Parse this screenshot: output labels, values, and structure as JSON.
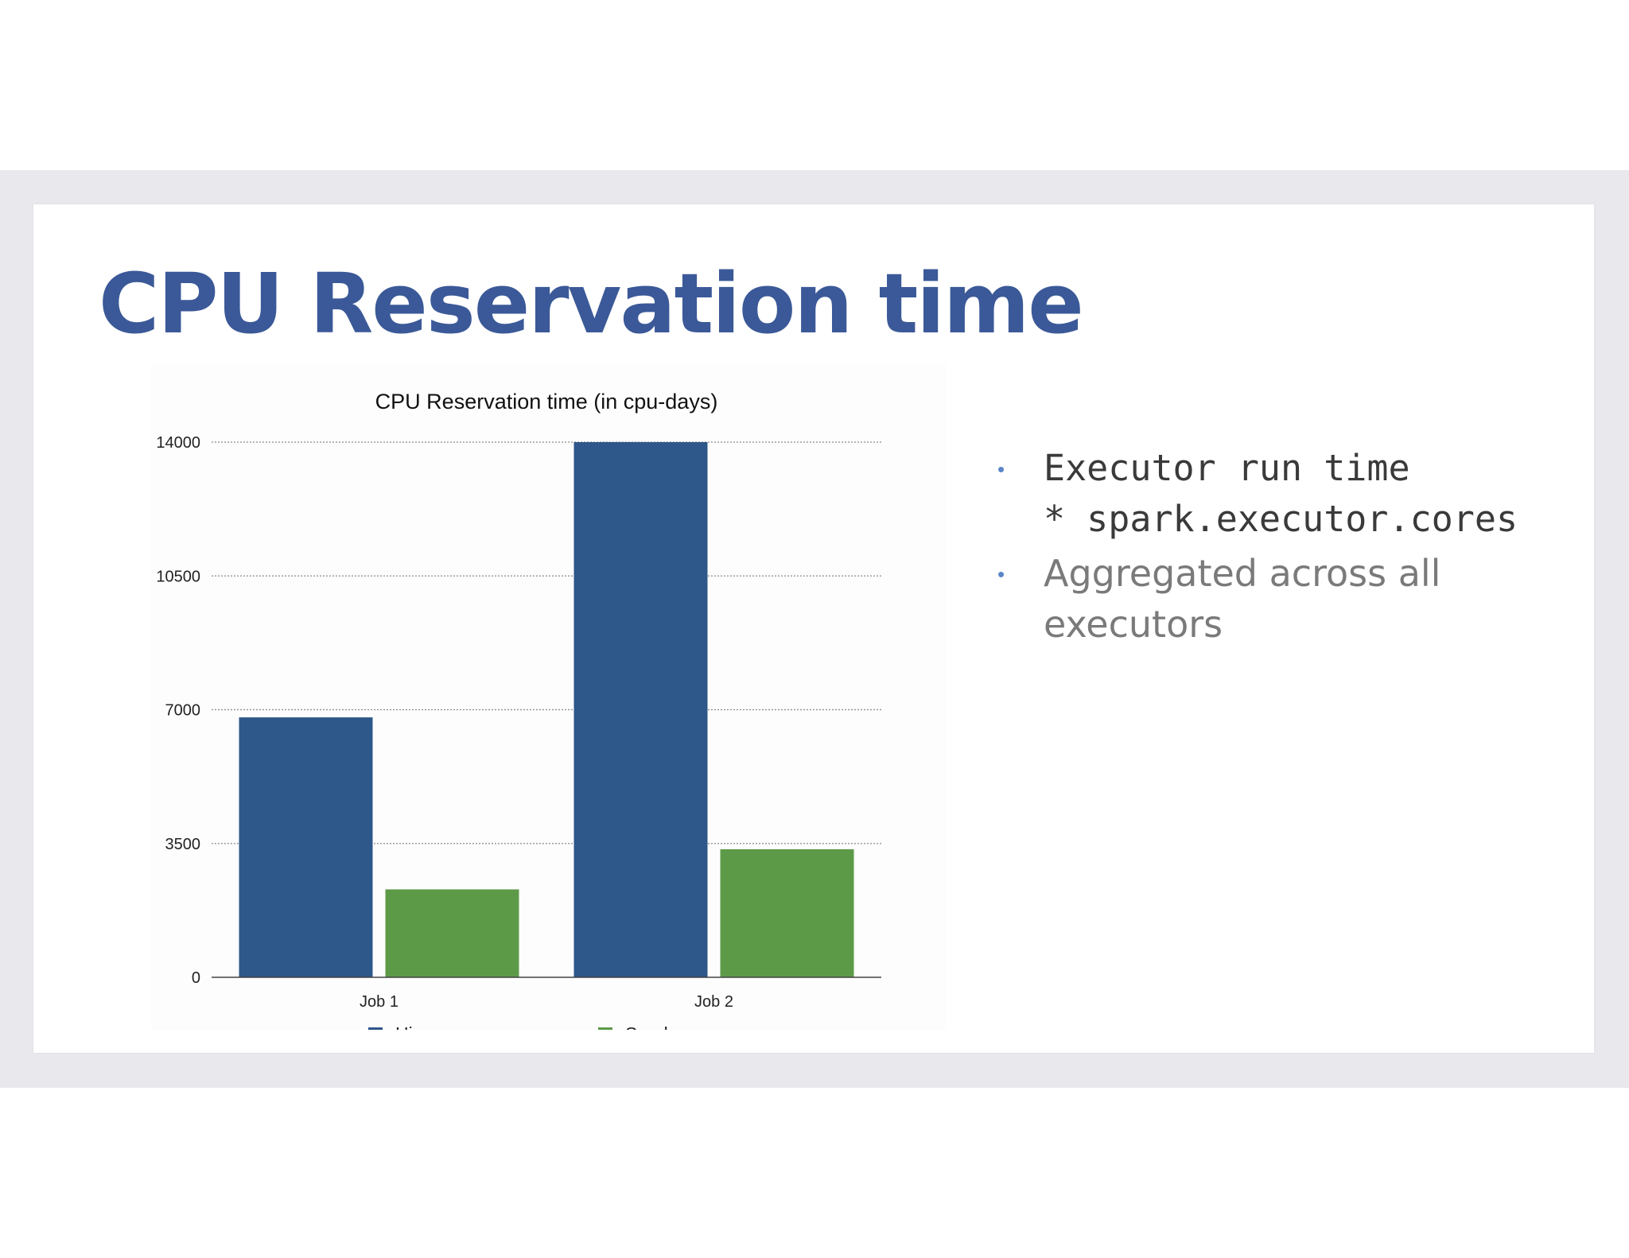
{
  "slide": {
    "title": "CPU Reservation time",
    "bullets": [
      {
        "lines": [
          "Executor run time",
          "* spark.executor.cores"
        ],
        "style": "mono"
      },
      {
        "lines": [
          "Aggregated across all",
          "executors"
        ],
        "style": "sans"
      }
    ]
  },
  "chart_data": {
    "type": "bar",
    "title": "CPU Reservation time (in cpu-days)",
    "xlabel": "",
    "ylabel": "",
    "categories": [
      "Job 1",
      "Job 2"
    ],
    "series": [
      {
        "name": "Hive",
        "values": [
          6800,
          14000
        ],
        "color": "#2e578a"
      },
      {
        "name": "Spark",
        "values": [
          2300,
          3350
        ],
        "color": "#5d9a48"
      }
    ],
    "ylim": [
      0,
      14000
    ],
    "yticks": [
      0,
      3500,
      7000,
      10500,
      14000
    ],
    "grid": true,
    "legend": "bottom"
  }
}
